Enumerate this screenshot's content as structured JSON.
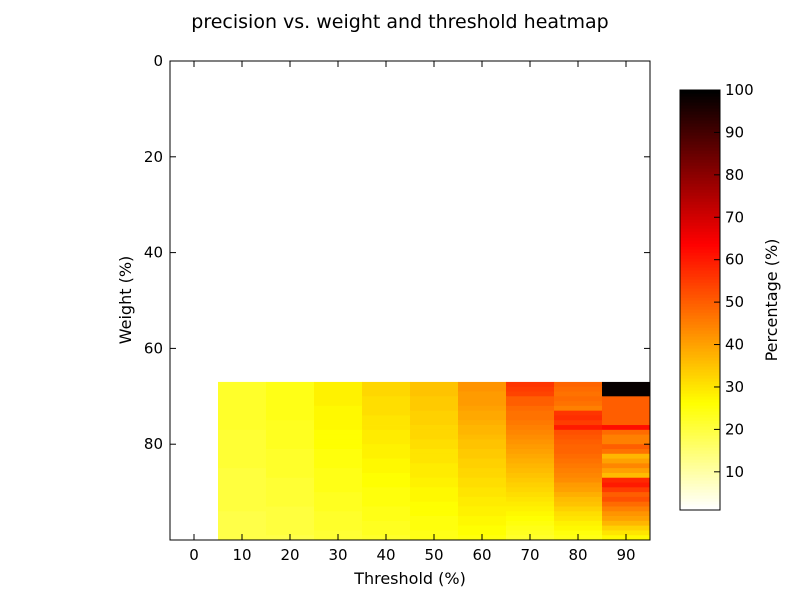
{
  "chart_data": {
    "type": "heatmap",
    "title": "precision vs. weight and threshold heatmap",
    "xlabel": "Threshold (%)",
    "ylabel": "Weight (%)",
    "colorbar_label": "Percentage (%)",
    "colormap": "hot_r",
    "xlim": [
      -5,
      95
    ],
    "ylim": [
      100,
      0
    ],
    "x_ticks": [
      0,
      10,
      20,
      30,
      40,
      50,
      60,
      70,
      80,
      90
    ],
    "y_ticks": [
      0,
      20,
      40,
      60,
      80
    ],
    "colorbar_range": [
      1,
      100
    ],
    "colorbar_ticks": [
      10,
      20,
      30,
      40,
      50,
      60,
      70,
      80,
      90,
      100
    ],
    "grid": false,
    "x": [
      10,
      20,
      30,
      40,
      50,
      60,
      70,
      80,
      90
    ],
    "y_start": 67,
    "y_end": 100,
    "y_step": 1,
    "z": [
      [
        22,
        24,
        28,
        32,
        35,
        42,
        56,
        49,
        99
      ],
      [
        22,
        24,
        28,
        32,
        35,
        42,
        55,
        48,
        99
      ],
      [
        22,
        24,
        28,
        32,
        35,
        41,
        54,
        47,
        99
      ],
      [
        22,
        24,
        28,
        31,
        34,
        41,
        50,
        48,
        50
      ],
      [
        22,
        24,
        28,
        31,
        34,
        41,
        50,
        47,
        50
      ],
      [
        22,
        24,
        27,
        31,
        34,
        40,
        48,
        45,
        50
      ],
      [
        22,
        24,
        27,
        31,
        33,
        39,
        47,
        56,
        50
      ],
      [
        22,
        24,
        27,
        30,
        33,
        39,
        47,
        57,
        50
      ],
      [
        22,
        23,
        27,
        30,
        33,
        38,
        46,
        55,
        50
      ],
      [
        22,
        23,
        27,
        30,
        32,
        37,
        45,
        60,
        62
      ],
      [
        21,
        23,
        26,
        29,
        32,
        37,
        44,
        52,
        48
      ],
      [
        21,
        23,
        26,
        29,
        32,
        36,
        43,
        51,
        45
      ],
      [
        21,
        23,
        26,
        29,
        31,
        35,
        42,
        50,
        45
      ],
      [
        21,
        23,
        26,
        28,
        31,
        35,
        41,
        49,
        50
      ],
      [
        21,
        22,
        25,
        28,
        30,
        34,
        40,
        49,
        47
      ],
      [
        21,
        22,
        25,
        28,
        30,
        34,
        39,
        48,
        37
      ],
      [
        21,
        22,
        25,
        27,
        30,
        33,
        38,
        47,
        40
      ],
      [
        21,
        22,
        25,
        27,
        29,
        33,
        37,
        46,
        44
      ],
      [
        20,
        22,
        24,
        27,
        29,
        32,
        36,
        45,
        40
      ],
      [
        20,
        22,
        24,
        26,
        29,
        32,
        35,
        44,
        36
      ],
      [
        20,
        21,
        24,
        26,
        28,
        31,
        34,
        43,
        58
      ],
      [
        20,
        21,
        24,
        26,
        28,
        31,
        33,
        41,
        60
      ],
      [
        20,
        21,
        24,
        25,
        27,
        30,
        32,
        40,
        55
      ],
      [
        20,
        21,
        23,
        25,
        27,
        30,
        31,
        38,
        50
      ],
      [
        20,
        21,
        23,
        25,
        27,
        29,
        30,
        36,
        52
      ],
      [
        20,
        21,
        23,
        25,
        26,
        29,
        29,
        35,
        48
      ],
      [
        20,
        20,
        23,
        24,
        26,
        28,
        28,
        33,
        45
      ],
      [
        19,
        20,
        22,
        24,
        26,
        28,
        27,
        31,
        42
      ],
      [
        19,
        20,
        22,
        24,
        25,
        27,
        26,
        30,
        40
      ],
      [
        19,
        20,
        22,
        23,
        25,
        27,
        25,
        28,
        37
      ],
      [
        19,
        20,
        22,
        23,
        25,
        26,
        24,
        27,
        33
      ],
      [
        19,
        20,
        21,
        23,
        24,
        26,
        23,
        25,
        30
      ],
      [
        19,
        19,
        21,
        22,
        24,
        25,
        22,
        24,
        27
      ]
    ]
  }
}
